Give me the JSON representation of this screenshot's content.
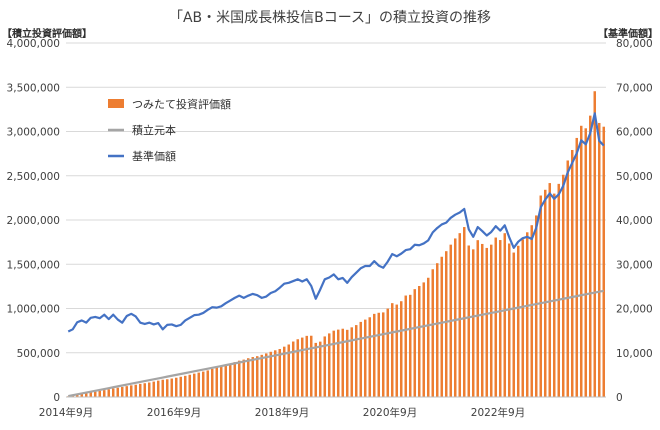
{
  "chart_data": {
    "type": "bar",
    "title": "「AB・米国成長株投信Bコース」の積立投資の推移",
    "y_left_label": "【積立投資評価額】",
    "y_right_label": "【基準価額】",
    "y_left": {
      "min": 0,
      "max": 4000000,
      "step": 500000
    },
    "y_right": {
      "min": 0,
      "max": 80000,
      "step": 10000
    },
    "x_axis": {
      "start": "2014-09",
      "end": "2024-06",
      "tick_labels": [
        "2014年9月",
        "2016年9月",
        "2018年9月",
        "2020年9月",
        "2022年9月"
      ],
      "tick_months": [
        0,
        24,
        48,
        72,
        96
      ]
    },
    "legend_position": "upper-left",
    "colors": {
      "bar": "#ed7d31",
      "principal": "#a5a5a5",
      "nav": "#4472c4"
    },
    "series": [
      {
        "name": "つみたて投資評価額",
        "type": "bar",
        "axis": "left",
        "values": [
          8200,
          16500,
          25800,
          34700,
          43500,
          52000,
          60300,
          69000,
          78100,
          87200,
          95800,
          104200,
          113500,
          122700,
          131800,
          139200,
          148400,
          155600,
          163800,
          174200,
          185100,
          195300,
          200500,
          208700,
          217800,
          228500,
          239200,
          251400,
          264100,
          275700,
          287200,
          300400,
          318600,
          336500,
          352900,
          365200,
          376800,
          394200,
          410600,
          422500,
          438200,
          451600,
          461300,
          476500,
          492400,
          510800,
          527600,
          542300,
          568800,
          593100,
          626900,
          652700,
          671400,
          690800,
          692300,
          611400,
          625600,
          684300,
          718600,
          749700,
          761400,
          771500,
          758800,
          787300,
          812600,
          848600,
          874500,
          900900,
          939400,
          951700,
          955900,
          998900,
          1060500,
          1044300,
          1082300,
          1146500,
          1154500,
          1218700,
          1254300,
          1294800,
          1347400,
          1443400,
          1512000,
          1584600,
          1647700,
          1721400,
          1791600,
          1851400,
          1920400,
          1711900,
          1668400,
          1772200,
          1729400,
          1684400,
          1721400,
          1801800,
          1773600,
          1850800,
          1734300,
          1632100,
          1708900,
          1782400,
          1861100,
          1941200,
          2051600,
          2276700,
          2341400,
          2417400,
          2298400,
          2408300,
          2511300,
          2672600,
          2791100,
          2927300,
          3064700,
          3036100,
          3179200,
          3455000,
          3096500,
          3054300
        ]
      },
      {
        "name": "積立元本",
        "type": "line",
        "axis": "left",
        "values": [
          10000,
          20000,
          30000,
          40000,
          50000,
          60000,
          70000,
          80000,
          90000,
          100000,
          110000,
          120000,
          130000,
          140000,
          150000,
          160000,
          170000,
          180000,
          190000,
          200000,
          210000,
          220000,
          230000,
          240000,
          250000,
          260000,
          270000,
          280000,
          290000,
          300000,
          310000,
          320000,
          330000,
          340000,
          350000,
          360000,
          370000,
          380000,
          390000,
          400000,
          410000,
          420000,
          430000,
          440000,
          450000,
          460000,
          470000,
          480000,
          490000,
          500000,
          510000,
          520000,
          530000,
          540000,
          550000,
          560000,
          570000,
          580000,
          590000,
          600000,
          610000,
          620000,
          630000,
          640000,
          650000,
          660000,
          670000,
          680000,
          690000,
          700000,
          710000,
          720000,
          730000,
          740000,
          750000,
          760000,
          770000,
          780000,
          790000,
          800000,
          810000,
          820000,
          830000,
          840000,
          850000,
          860000,
          870000,
          880000,
          890000,
          900000,
          910000,
          920000,
          930000,
          940000,
          950000,
          960000,
          970000,
          980000,
          990000,
          1000000,
          1010000,
          1020000,
          1030000,
          1040000,
          1050000,
          1060000,
          1070000,
          1080000,
          1090000,
          1100000,
          1110000,
          1120000,
          1130000,
          1140000,
          1150000,
          1160000,
          1170000,
          1180000,
          1190000,
          1200000
        ]
      },
      {
        "name": "基準価額",
        "type": "line",
        "axis": "right",
        "values": [
          14800,
          15300,
          16900,
          17300,
          16800,
          17900,
          18100,
          17800,
          18600,
          17600,
          18600,
          17500,
          16800,
          18300,
          18800,
          18200,
          16800,
          16500,
          16800,
          16400,
          16700,
          15300,
          16300,
          16400,
          16000,
          16300,
          17300,
          17900,
          18500,
          18600,
          19000,
          19700,
          20300,
          20200,
          20500,
          21200,
          21800,
          22400,
          22900,
          22400,
          22900,
          23300,
          23000,
          22400,
          22700,
          23500,
          23900,
          24700,
          25600,
          25800,
          26200,
          26600,
          26100,
          26600,
          25100,
          22200,
          24300,
          26600,
          27000,
          27700,
          26600,
          26900,
          25800,
          27100,
          28100,
          29100,
          29600,
          29600,
          30700,
          29700,
          29200,
          30600,
          32300,
          31800,
          32400,
          33200,
          33400,
          34400,
          34300,
          34700,
          35400,
          37200,
          38200,
          39000,
          39400,
          40500,
          41200,
          41700,
          42500,
          37900,
          36200,
          38400,
          37500,
          36500,
          37300,
          38600,
          37600,
          38800,
          36100,
          33700,
          35100,
          35900,
          36200,
          35700,
          38200,
          42900,
          44600,
          46000,
          44800,
          45800,
          47700,
          50800,
          52900,
          55100,
          58000,
          57100,
          59600,
          64100,
          57900,
          56800
        ]
      }
    ]
  }
}
